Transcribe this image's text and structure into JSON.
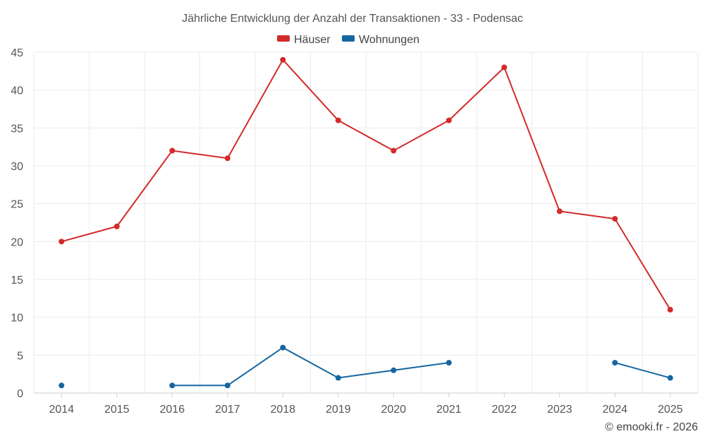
{
  "chart_data": {
    "type": "line",
    "title": "Jährliche Entwicklung der Anzahl der Transaktionen - 33 - Podensac",
    "categories": [
      "2014",
      "2015",
      "2016",
      "2017",
      "2018",
      "2019",
      "2020",
      "2021",
      "2022",
      "2023",
      "2024",
      "2025"
    ],
    "ylim": [
      0,
      45
    ],
    "yticks": [
      0,
      5,
      10,
      15,
      20,
      25,
      30,
      35,
      40,
      45
    ],
    "grid": true,
    "legend_position": "top-center",
    "series": [
      {
        "name": "Häuser",
        "color": "#d32a2a",
        "values": [
          20,
          22,
          32,
          31,
          44,
          36,
          32,
          36,
          43,
          24,
          23,
          11
        ]
      },
      {
        "name": "Wohnungen",
        "color": "#1566a0",
        "values": [
          1,
          null,
          1,
          1,
          6,
          2,
          3,
          4,
          null,
          null,
          4,
          2
        ]
      }
    ]
  },
  "credit": "© emooki.fr - 2026"
}
